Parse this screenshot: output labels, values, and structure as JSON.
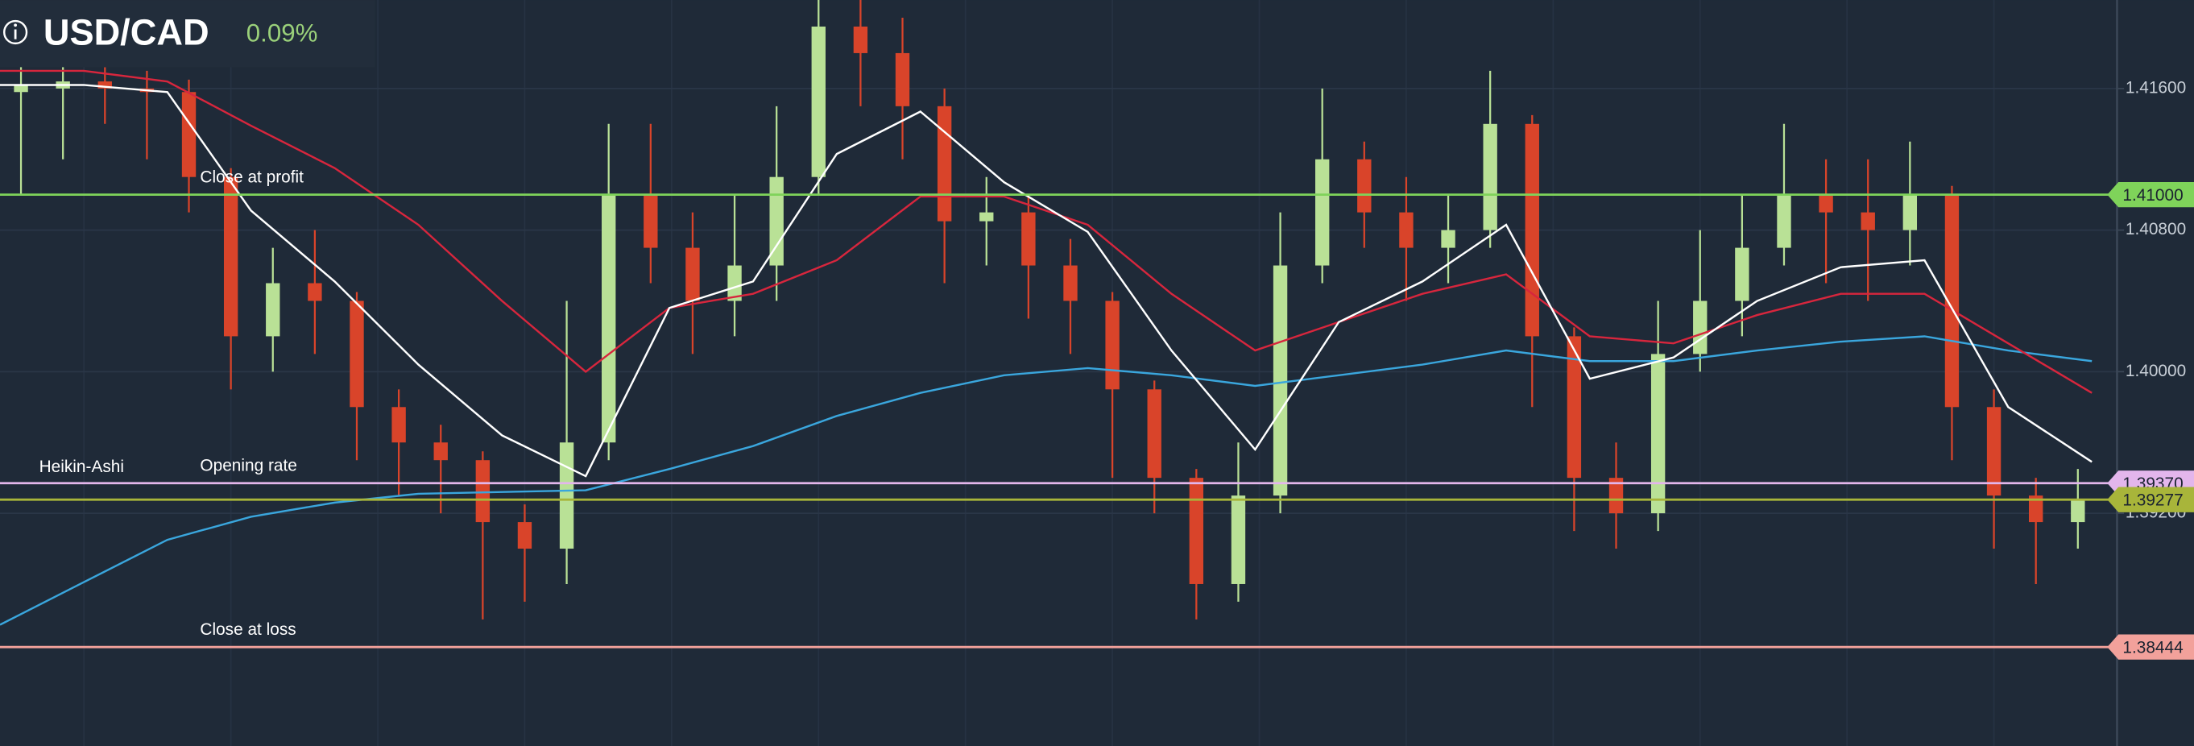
{
  "header": {
    "symbol": "USD/CAD",
    "change": "0.09%"
  },
  "chart_data": {
    "type": "candlestick",
    "chart_label": "Heikin-Ashi",
    "ylim": [
      1.37885,
      1.421
    ],
    "yticks": [
      {
        "value": 1.416,
        "label": "1.41600"
      },
      {
        "value": 1.408,
        "label": "1.40800"
      },
      {
        "value": 1.4,
        "label": "1.40000"
      },
      {
        "value": 1.392,
        "label": "1.39200"
      }
    ],
    "grid": true,
    "candles": {
      "up_color": "#b9e196",
      "down_color": "#d9442a",
      "open": [
        1.4158,
        1.416,
        1.4164,
        1.416,
        1.4158,
        1.411,
        1.402,
        1.405,
        1.404,
        1.398,
        1.396,
        1.395,
        1.3915,
        1.39,
        1.396,
        1.41,
        1.407,
        1.404,
        1.406,
        1.411,
        1.4195,
        1.418,
        1.415,
        1.4085,
        1.409,
        1.406,
        1.404,
        1.399,
        1.394,
        1.388,
        1.393,
        1.406,
        1.412,
        1.409,
        1.407,
        1.408,
        1.414,
        1.402,
        1.394,
        1.392,
        1.401,
        1.404,
        1.407,
        1.41,
        1.409,
        1.408,
        1.41,
        1.398,
        1.393,
        1.3915
      ],
      "high": [
        1.4175,
        1.4178,
        1.4172,
        1.417,
        1.4165,
        1.4115,
        1.407,
        1.408,
        1.4045,
        1.399,
        1.397,
        1.3955,
        1.3925,
        1.404,
        1.414,
        1.414,
        1.409,
        1.41,
        1.415,
        1.4215,
        1.4215,
        1.42,
        1.416,
        1.411,
        1.41,
        1.4075,
        1.4045,
        1.3995,
        1.3945,
        1.396,
        1.409,
        1.416,
        1.413,
        1.411,
        1.41,
        1.417,
        1.4145,
        1.4025,
        1.396,
        1.404,
        1.408,
        1.41,
        1.414,
        1.412,
        1.412,
        1.413,
        1.4105,
        1.399,
        1.394,
        1.3945
      ],
      "low": [
        1.41,
        1.412,
        1.414,
        1.412,
        1.409,
        1.399,
        1.4,
        1.401,
        1.395,
        1.393,
        1.392,
        1.386,
        1.387,
        1.388,
        1.395,
        1.405,
        1.401,
        1.402,
        1.404,
        1.41,
        1.415,
        1.412,
        1.405,
        1.406,
        1.403,
        1.401,
        1.394,
        1.392,
        1.386,
        1.387,
        1.392,
        1.405,
        1.407,
        1.404,
        1.405,
        1.407,
        1.398,
        1.391,
        1.39,
        1.391,
        1.4,
        1.402,
        1.406,
        1.405,
        1.404,
        1.406,
        1.395,
        1.39,
        1.388,
        1.39
      ],
      "close": [
        1.4162,
        1.4164,
        1.416,
        1.4158,
        1.411,
        1.402,
        1.405,
        1.404,
        1.398,
        1.396,
        1.395,
        1.3915,
        1.39,
        1.396,
        1.41,
        1.407,
        1.404,
        1.406,
        1.411,
        1.4195,
        1.418,
        1.415,
        1.4085,
        1.409,
        1.406,
        1.404,
        1.399,
        1.394,
        1.388,
        1.393,
        1.406,
        1.412,
        1.409,
        1.407,
        1.408,
        1.414,
        1.402,
        1.394,
        1.392,
        1.401,
        1.404,
        1.407,
        1.41,
        1.409,
        1.408,
        1.41,
        1.398,
        1.393,
        1.3915,
        1.3928
      ]
    },
    "series": [
      {
        "color": "#3aa6dd",
        "values": [
          1.3857,
          1.3881,
          1.3905,
          1.3918,
          1.3926,
          1.3931,
          1.3932,
          1.3933,
          1.3945,
          1.3958,
          1.3975,
          1.3988,
          1.3998,
          1.4002,
          1.3998,
          1.3992,
          1.3998,
          1.4004,
          1.4012,
          1.4006,
          1.4006,
          1.4012,
          1.4017,
          1.402,
          1.4012,
          1.4006
        ]
      },
      {
        "color": "#d7263d",
        "values": [
          1.417,
          1.417,
          1.4164,
          1.4139,
          1.4115,
          1.4083,
          1.404,
          1.4,
          1.4036,
          1.4044,
          1.4063,
          1.4099,
          1.4099,
          1.4083,
          1.4044,
          1.4012,
          1.4028,
          1.4044,
          1.4055,
          1.402,
          1.4016,
          1.4032,
          1.4044,
          1.4044,
          1.4016,
          1.3988
        ]
      },
      {
        "color": "#ffffff",
        "values": [
          1.4162,
          1.4162,
          1.4158,
          1.4091,
          1.4051,
          1.4004,
          1.3964,
          1.3941,
          1.4036,
          1.4051,
          1.4123,
          1.4147,
          1.4107,
          1.4079,
          1.4012,
          1.3956,
          1.4028,
          1.4051,
          1.4083,
          1.3996,
          1.4008,
          1.404,
          1.4059,
          1.4063,
          1.398,
          1.3949
        ]
      }
    ],
    "levels": [
      {
        "name": "Close at profit",
        "value": 1.41,
        "label": "1.41000",
        "color": "#7fd35a"
      },
      {
        "name": "Opening rate",
        "value": 1.3937,
        "label": "1.39370",
        "color": "#e3b6ec"
      },
      {
        "value": 1.39277,
        "label": "1.39277",
        "color": "#a8b53a"
      },
      {
        "name": "Close at loss",
        "value": 1.38444,
        "label": "1.38444",
        "color": "#f2a19b"
      }
    ]
  }
}
